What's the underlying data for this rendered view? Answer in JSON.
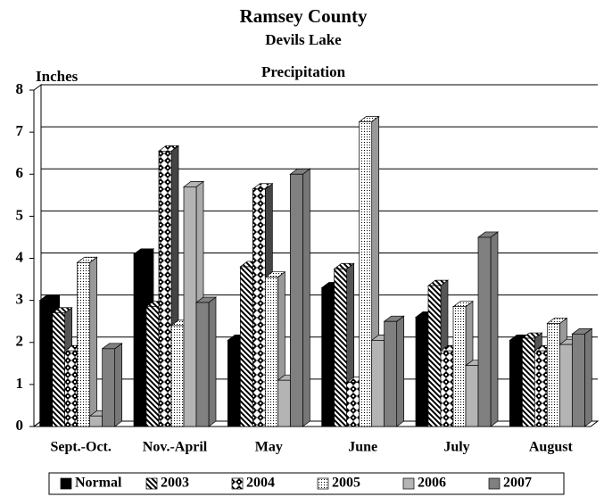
{
  "chart_data": {
    "type": "bar",
    "title": "Ramsey County",
    "subtitle": "Devils Lake",
    "annotations": [
      "Precipitation"
    ],
    "y_label": "Inches",
    "categories": [
      "Sept.-Oct.",
      "Nov.-April",
      "May",
      "June",
      "July",
      "August"
    ],
    "series": [
      {
        "name": "Normal",
        "color": "#000000",
        "values": [
          3.0,
          4.1,
          2.05,
          3.3,
          2.6,
          2.05
        ]
      },
      {
        "name": "2003",
        "color": "#555555",
        "values": [
          2.7,
          2.85,
          3.8,
          3.75,
          3.35,
          2.1
        ]
      },
      {
        "name": "2004",
        "color": "#444444",
        "values": [
          1.8,
          6.55,
          5.65,
          1.05,
          1.8,
          1.8
        ]
      },
      {
        "name": "2005",
        "color": "#999999",
        "values": [
          3.9,
          2.4,
          3.55,
          7.25,
          2.85,
          2.45
        ]
      },
      {
        "name": "2006",
        "color": "#aaaaaa",
        "values": [
          0.25,
          5.7,
          1.1,
          2.05,
          1.45,
          1.95
        ]
      },
      {
        "name": "2007",
        "color": "#777777",
        "values": [
          1.85,
          2.95,
          6.0,
          2.5,
          4.5,
          2.2
        ]
      }
    ],
    "ylim": [
      0,
      8
    ],
    "yticks": [
      0,
      1,
      2,
      3,
      4,
      5,
      6,
      7,
      8
    ],
    "grid": true,
    "legend": "bottom"
  }
}
